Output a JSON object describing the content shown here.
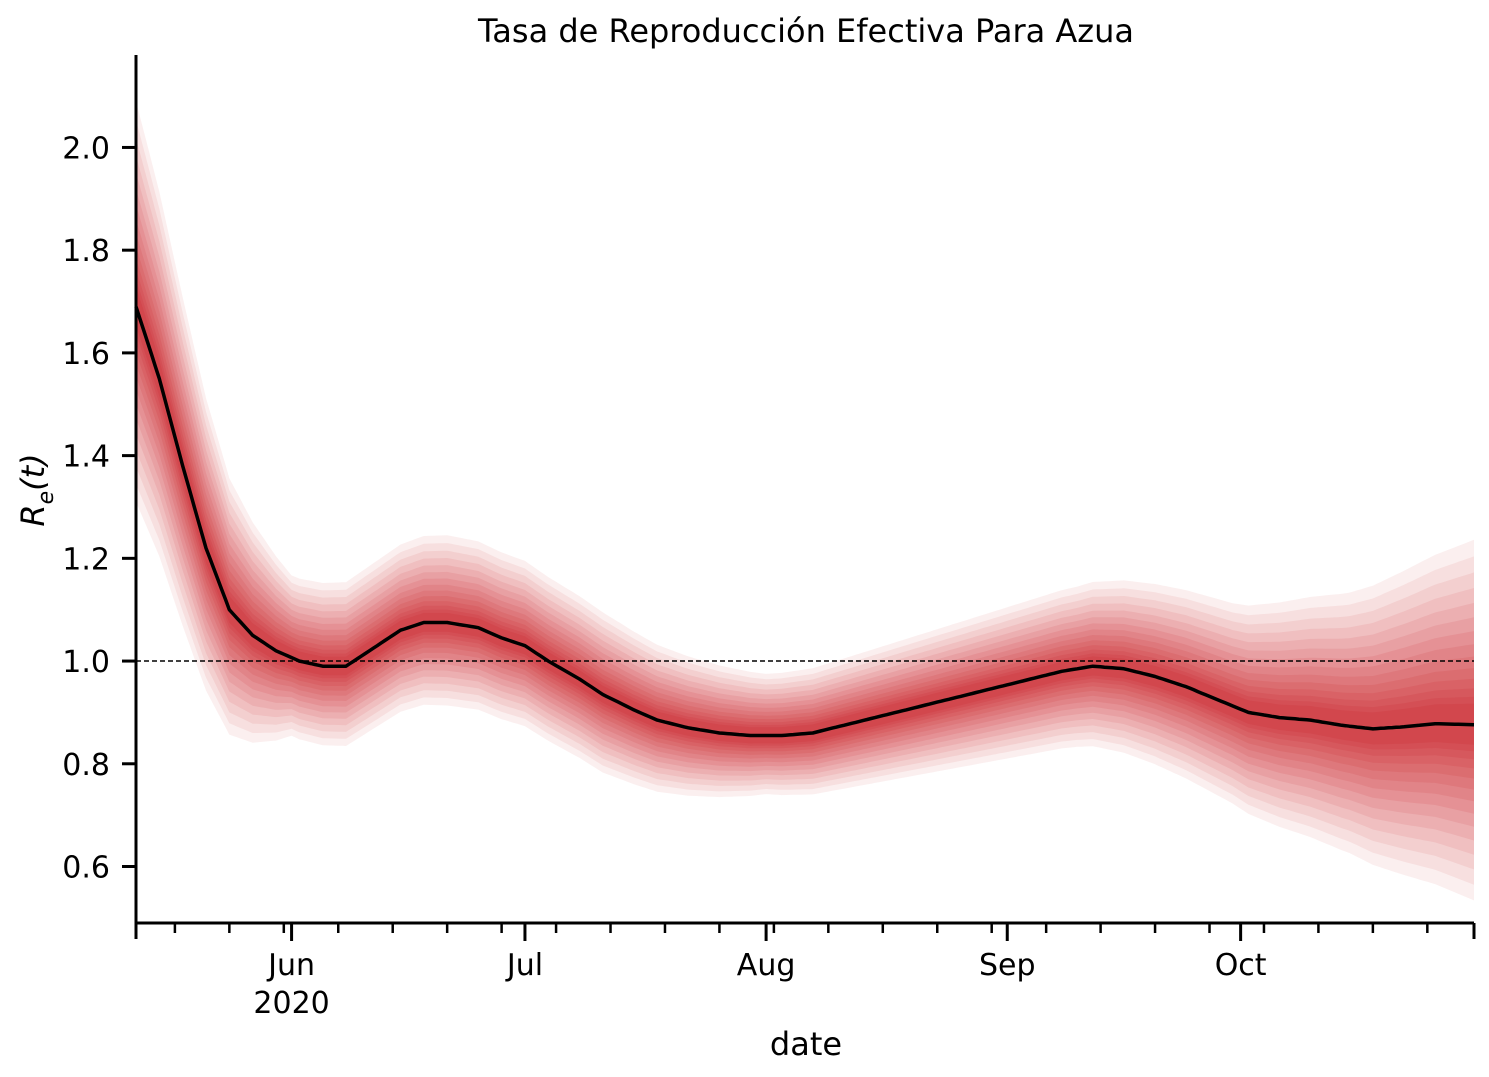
{
  "chart_data": {
    "type": "line",
    "title": "Tasa de Reproducción Efectiva Para Azua",
    "xlabel": "date",
    "ylabel_main": "R",
    "ylabel_sub": "e",
    "ylabel_arg": "(t)",
    "ylim": [
      0.49,
      2.18
    ],
    "xlim": [
      "2020-05-12",
      "2020-10-31"
    ],
    "reference_line": 1.0,
    "yticks": [
      0.6,
      0.8,
      1.0,
      1.2,
      1.4,
      1.6,
      1.8,
      2.0
    ],
    "ytick_labels": [
      "0.6",
      "0.8",
      "1.0",
      "1.2",
      "1.4",
      "1.6",
      "1.8",
      "2.0"
    ],
    "xticks_major": [
      {
        "date": "2020-06-01",
        "label": "Jun",
        "sublabel": "2020"
      },
      {
        "date": "2020-07-01",
        "label": "Jul",
        "sublabel": ""
      },
      {
        "date": "2020-08-01",
        "label": "Aug",
        "sublabel": ""
      },
      {
        "date": "2020-09-01",
        "label": "Sep",
        "sublabel": ""
      },
      {
        "date": "2020-10-01",
        "label": "Oct",
        "sublabel": ""
      }
    ],
    "series": [
      {
        "role": "median",
        "color": "#000000",
        "x": [
          "2020-05-12",
          "2020-05-15",
          "2020-05-18",
          "2020-05-21",
          "2020-05-24",
          "2020-05-27",
          "2020-05-30",
          "2020-06-02",
          "2020-06-05",
          "2020-06-08",
          "2020-06-11",
          "2020-06-15",
          "2020-06-18",
          "2020-06-21",
          "2020-06-25",
          "2020-06-28",
          "2020-07-01",
          "2020-07-04",
          "2020-07-08",
          "2020-07-11",
          "2020-07-15",
          "2020-07-18",
          "2020-07-22",
          "2020-07-26",
          "2020-07-30",
          "2020-08-03",
          "2020-08-07",
          "2020-08-11",
          "2020-08-15",
          "2020-08-19",
          "2020-08-23",
          "2020-08-27",
          "2020-08-31",
          "2020-09-04",
          "2020-09-08",
          "2020-09-12",
          "2020-09-16",
          "2020-09-20",
          "2020-09-24",
          "2020-09-28",
          "2020-10-02",
          "2020-10-06",
          "2020-10-10",
          "2020-10-14",
          "2020-10-18",
          "2020-10-22",
          "2020-10-26",
          "2020-10-31"
        ],
        "y": [
          1.69,
          1.55,
          1.38,
          1.22,
          1.1,
          1.05,
          1.02,
          1.0,
          0.99,
          0.99,
          1.02,
          1.06,
          1.075,
          1.075,
          1.065,
          1.045,
          1.03,
          1.0,
          0.965,
          0.935,
          0.905,
          0.885,
          0.87,
          0.86,
          0.855,
          0.855,
          0.86,
          0.875,
          0.89,
          0.905,
          0.92,
          0.935,
          0.95,
          0.965,
          0.98,
          0.99,
          0.985,
          0.97,
          0.95,
          0.925,
          0.9,
          0.89,
          0.885,
          0.875,
          0.868,
          0.872,
          0.878,
          0.876
        ]
      }
    ],
    "band_halfwidths": {
      "x": [
        "2020-05-12",
        "2020-06-01",
        "2020-06-21",
        "2020-07-11",
        "2020-08-01",
        "2020-08-21",
        "2020-09-10",
        "2020-09-30",
        "2020-10-15",
        "2020-10-31"
      ],
      "inner": [
        0.1,
        0.05,
        0.05,
        0.045,
        0.045,
        0.05,
        0.05,
        0.06,
        0.08,
        0.11
      ],
      "outer": [
        0.4,
        0.16,
        0.17,
        0.16,
        0.12,
        0.14,
        0.16,
        0.2,
        0.26,
        0.36
      ]
    },
    "band_color": "#cb181d",
    "grid": false,
    "legend": "none"
  }
}
